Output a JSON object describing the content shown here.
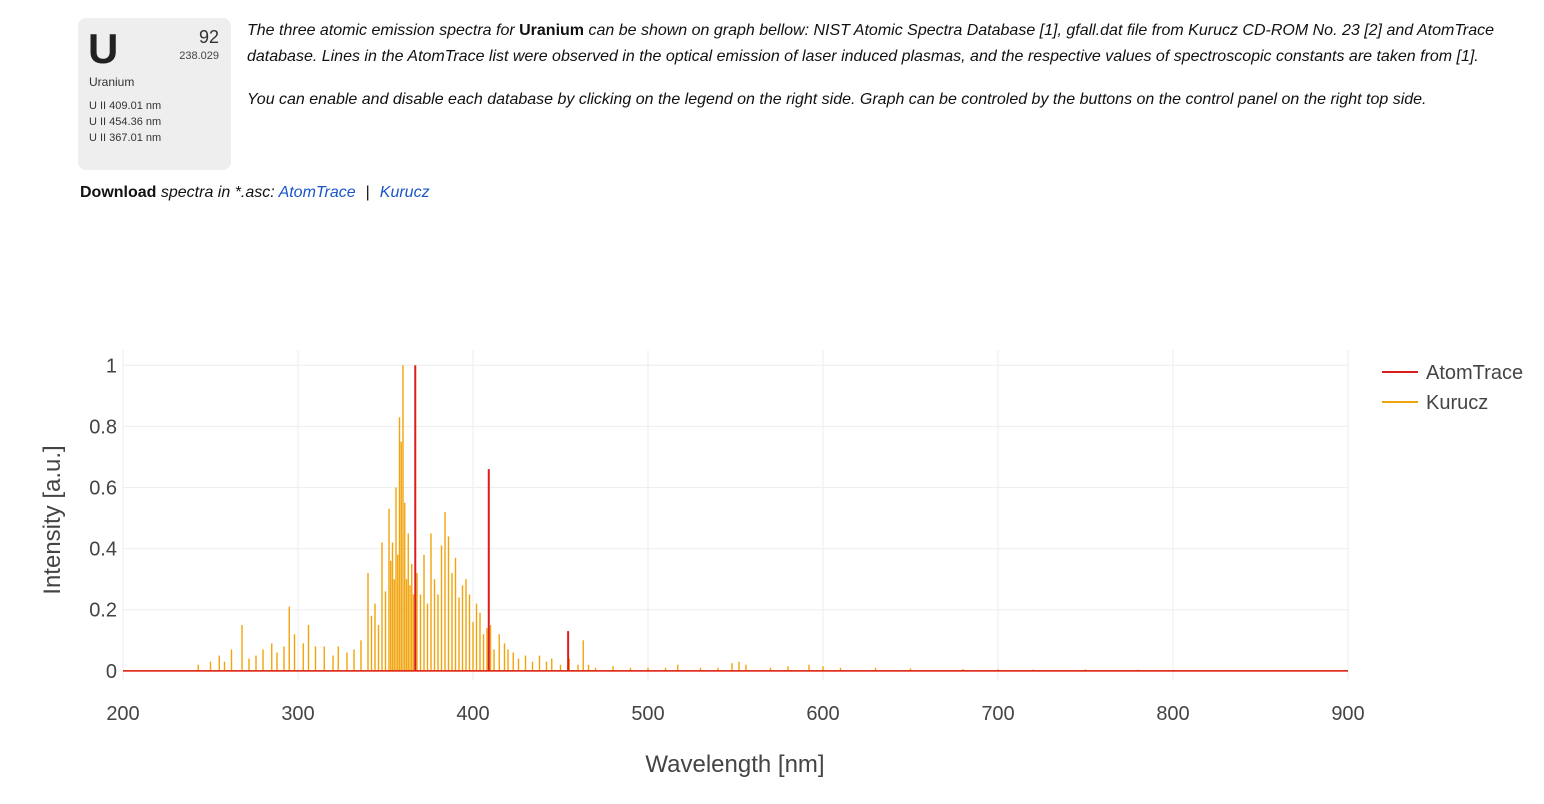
{
  "element": {
    "symbol": "U",
    "number": "92",
    "mass": "238.029",
    "name": "Uranium",
    "lines": [
      "U II 409.01 nm",
      "U II 454.36 nm",
      "U II 367.01 nm"
    ]
  },
  "description": {
    "p1_before": "The three atomic emission spectra for ",
    "p1_bold": "Uranium",
    "p1_after": " can be shown on graph bellow: NIST Atomic Spectra Database [1], gfall.dat file from Kurucz CD-ROM No. 23 [2] and AtomTrace database. Lines in the AtomTrace list were observed in the optical emission of laser induced plasmas, and the respective values of spectroscopic constants are taken from [1].",
    "p2": "You can enable and disable each database by clicking on the legend on the right side. Graph can be controled by the buttons on the control panel on the right top side."
  },
  "download": {
    "title": "Download",
    "text": " spectra in *.asc: ",
    "link1": "AtomTrace",
    "separator": "|",
    "link2": "Kurucz"
  },
  "colors": {
    "atomtrace": "#dd1c1c",
    "kurucz": "#f2a40c",
    "grid": "#eeeeee",
    "link": "#1a56c8"
  },
  "chart_data": {
    "type": "line",
    "title": "",
    "xlabel": "Wavelength [nm]",
    "ylabel": "Intensity [a.u.]",
    "xlim": [
      200,
      900
    ],
    "ylim": [
      -0.03,
      1.05
    ],
    "xticks": [
      200,
      300,
      400,
      500,
      600,
      700,
      800,
      900
    ],
    "yticks": [
      0,
      0.2,
      0.4,
      0.6,
      0.8,
      1
    ],
    "ytick_labels": [
      "0",
      "0.2",
      "0.4",
      "0.6",
      "0.8",
      "1"
    ],
    "grid": true,
    "legend_position": "top-right",
    "series": [
      {
        "name": "AtomTrace",
        "color": "#dd1c1c",
        "peaks": [
          [
            367.01,
            1.0
          ],
          [
            409.01,
            0.66
          ],
          [
            454.36,
            0.13
          ]
        ]
      },
      {
        "name": "Kurucz",
        "color": "#f2a40c",
        "peaks": [
          [
            243,
            0.02
          ],
          [
            250,
            0.03
          ],
          [
            255,
            0.05
          ],
          [
            258,
            0.03
          ],
          [
            262,
            0.07
          ],
          [
            268,
            0.15
          ],
          [
            272,
            0.04
          ],
          [
            276,
            0.05
          ],
          [
            280,
            0.07
          ],
          [
            285,
            0.09
          ],
          [
            288,
            0.06
          ],
          [
            292,
            0.08
          ],
          [
            295,
            0.21
          ],
          [
            298,
            0.12
          ],
          [
            303,
            0.09
          ],
          [
            306,
            0.15
          ],
          [
            310,
            0.08
          ],
          [
            315,
            0.08
          ],
          [
            320,
            0.05
          ],
          [
            323,
            0.08
          ],
          [
            328,
            0.06
          ],
          [
            332,
            0.07
          ],
          [
            336,
            0.1
          ],
          [
            340,
            0.32
          ],
          [
            342,
            0.18
          ],
          [
            344,
            0.22
          ],
          [
            346,
            0.15
          ],
          [
            348,
            0.42
          ],
          [
            350,
            0.26
          ],
          [
            352,
            0.53
          ],
          [
            353,
            0.36
          ],
          [
            354,
            0.42
          ],
          [
            355,
            0.3
          ],
          [
            356,
            0.6
          ],
          [
            357,
            0.38
          ],
          [
            358,
            0.83
          ],
          [
            359,
            0.75
          ],
          [
            360,
            1.0
          ],
          [
            361,
            0.55
          ],
          [
            362,
            0.3
          ],
          [
            363,
            0.45
          ],
          [
            364,
            0.28
          ],
          [
            365,
            0.35
          ],
          [
            366,
            0.25
          ],
          [
            368,
            0.32
          ],
          [
            370,
            0.25
          ],
          [
            372,
            0.38
          ],
          [
            374,
            0.22
          ],
          [
            376,
            0.45
          ],
          [
            378,
            0.3
          ],
          [
            380,
            0.25
          ],
          [
            382,
            0.41
          ],
          [
            384,
            0.52
          ],
          [
            386,
            0.44
          ],
          [
            388,
            0.32
          ],
          [
            390,
            0.37
          ],
          [
            392,
            0.24
          ],
          [
            394,
            0.28
          ],
          [
            396,
            0.3
          ],
          [
            398,
            0.25
          ],
          [
            400,
            0.16
          ],
          [
            402,
            0.22
          ],
          [
            404,
            0.19
          ],
          [
            406,
            0.12
          ],
          [
            408,
            0.14
          ],
          [
            410,
            0.15
          ],
          [
            412,
            0.07
          ],
          [
            415,
            0.12
          ],
          [
            418,
            0.09
          ],
          [
            420,
            0.07
          ],
          [
            423,
            0.06
          ],
          [
            426,
            0.04
          ],
          [
            430,
            0.05
          ],
          [
            434,
            0.03
          ],
          [
            438,
            0.05
          ],
          [
            442,
            0.03
          ],
          [
            445,
            0.04
          ],
          [
            450,
            0.02
          ],
          [
            455,
            0.04
          ],
          [
            460,
            0.02
          ],
          [
            463,
            0.1
          ],
          [
            466,
            0.02
          ],
          [
            470,
            0.01
          ],
          [
            480,
            0.015
          ],
          [
            490,
            0.01
          ],
          [
            500,
            0.01
          ],
          [
            510,
            0.01
          ],
          [
            517,
            0.02
          ],
          [
            530,
            0.01
          ],
          [
            540,
            0.01
          ],
          [
            548,
            0.025
          ],
          [
            552,
            0.03
          ],
          [
            556,
            0.02
          ],
          [
            570,
            0.01
          ],
          [
            580,
            0.015
          ],
          [
            592,
            0.02
          ],
          [
            600,
            0.015
          ],
          [
            610,
            0.01
          ],
          [
            630,
            0.01
          ],
          [
            650,
            0.008
          ],
          [
            680,
            0.006
          ],
          [
            700,
            0.005
          ],
          [
            720,
            0.004
          ],
          [
            750,
            0.005
          ],
          [
            780,
            0.004
          ],
          [
            800,
            0.003
          ],
          [
            830,
            0.003
          ],
          [
            860,
            0.003
          ],
          [
            875,
            0.002
          ]
        ]
      }
    ]
  }
}
